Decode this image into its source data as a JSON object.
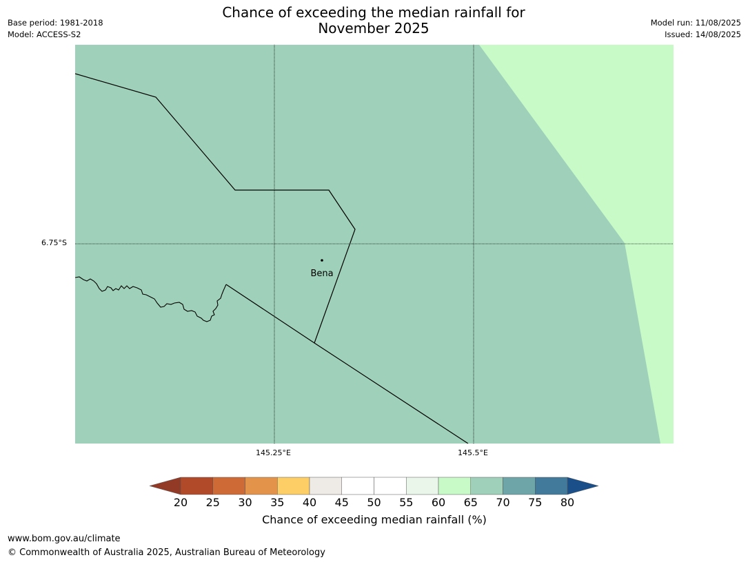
{
  "title_line1": "Chance of exceeding the median rainfall for",
  "title_line2": "November 2025",
  "base_period": "Base period: 1981-2018",
  "model": "Model: ACCESS-S2",
  "model_run": "Model run: 11/08/2025",
  "issued": "Issued: 14/08/2025",
  "map": {
    "lat_labels": [
      "6.75°S"
    ],
    "lon_labels": [
      "145.25°E",
      "145.5°E"
    ],
    "place_label": "Bena",
    "colors": {
      "main_fill": "#9fd0b9",
      "secondary_fill": "#c8fac8",
      "boundary": "#000000"
    },
    "regions": [
      {
        "category": "65-70",
        "color": "#9fd0b9"
      },
      {
        "category": "60-65",
        "color": "#c8fac8"
      }
    ]
  },
  "colorbar": {
    "title": "Chance of exceeding median rainfall (%)",
    "tick_labels": [
      "20",
      "25",
      "30",
      "35",
      "40",
      "45",
      "50",
      "55",
      "60",
      "65",
      "70",
      "75",
      "80"
    ],
    "under_color": "#933a26",
    "over_color": "#1a4f8a",
    "segments": [
      "#b04a28",
      "#ce6a35",
      "#e3944a",
      "#fdcd66",
      "#eeeae6",
      "#ffffff",
      "#ffffff",
      "#eaf6ea",
      "#c8fac8",
      "#9fd0b9",
      "#6ea5a8",
      "#417a9a"
    ]
  },
  "footer_url": "www.bom.gov.au/climate",
  "footer_copyright": "© Commonwealth of Australia 2025, Australian Bureau of Meteorology"
}
